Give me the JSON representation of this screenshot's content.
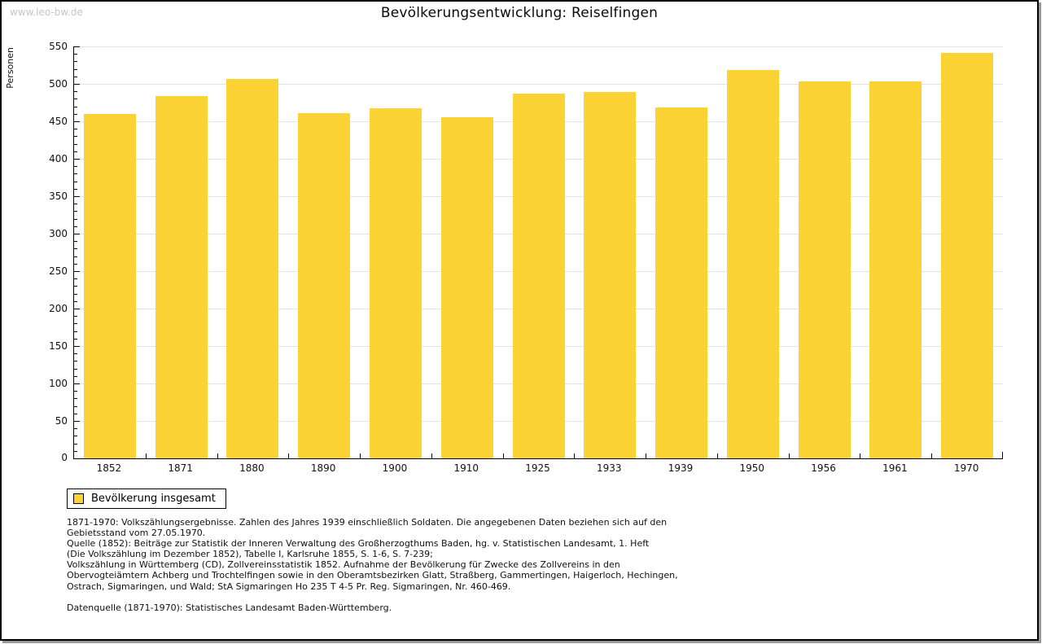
{
  "watermark": "www.leo-bw.de",
  "title": "Bevölkerungsentwicklung: Reiselfingen",
  "legend": {
    "label": "Bevölkerung insgesamt"
  },
  "footer": {
    "lines": [
      "1871-1970: Volkszählungsergebnisse. Zahlen des Jahres 1939 einschließlich Soldaten. Die angegebenen Daten beziehen sich auf den",
      "Gebietsstand vom 27.05.1970.",
      "Quelle (1852): Beiträge zur Statistik der Inneren Verwaltung des Großherzogthums Baden, hg. v. Statistischen Landesamt, 1. Heft",
      "(Die Volkszählung im Dezember 1852), Tabelle I, Karlsruhe 1855, S. 1-6, S. 7-239;",
      "Volkszählung in Württemberg (CD), Zollvereinsstatistik 1852. Aufnahme der Bevölkerung für Zwecke des Zollvereins in den",
      "Obervogteiämtern Achberg und Trochtelfingen sowie in den Oberamtsbezirken Glatt, Straßberg, Gammertingen, Haigerloch, Hechingen,",
      "Ostrach, Sigmaringen, und Wald; StA Sigmaringen Ho 235 T 4-5 Pr. Reg. Sigmaringen, Nr. 460-469."
    ],
    "datasource": "Datenquelle (1871-1970): Statistisches Landesamt Baden-Württemberg."
  },
  "colors": {
    "bar": "#FCD335",
    "grid": "#E3E3E3",
    "axis": "#000000",
    "watermark": "#C6C6C6"
  },
  "chart_data": {
    "type": "bar",
    "title": "Bevölkerungsentwicklung: Reiselfingen",
    "xlabel": "",
    "ylabel": "Personen",
    "categories": [
      "1852",
      "1871",
      "1880",
      "1890",
      "1900",
      "1910",
      "1925",
      "1933",
      "1939",
      "1950",
      "1956",
      "1961",
      "1970"
    ],
    "values": [
      460,
      484,
      506,
      461,
      467,
      455,
      487,
      489,
      469,
      518,
      503,
      503,
      541
    ],
    "series_name": "Bevölkerung insgesamt",
    "ylim": [
      0,
      550
    ],
    "ytick_step": 50,
    "ytick_minor": 10,
    "grid": "horizontal-major",
    "legend_position": "bottom-left",
    "bar_color": "#FCD335"
  }
}
